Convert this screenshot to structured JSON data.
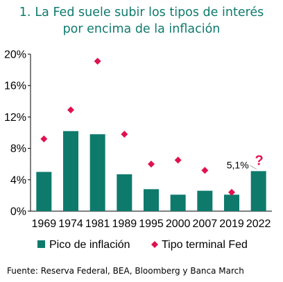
{
  "title_number": "1.",
  "title_line1": "La Fed suele subir los tipos de interés",
  "title_line2": "por encima de la inflación",
  "source": "Fuente: Reserva Federal, BEA, Bloomberg y Banca March",
  "colors": {
    "bars": "#0e7a6c",
    "markers": "#e0114f",
    "title": "#0e7a6c"
  },
  "chart_data": {
    "type": "bar",
    "categories": [
      "1969",
      "1974",
      "1981",
      "1989",
      "1995",
      "2000",
      "2007",
      "2019",
      "2022"
    ],
    "series": [
      {
        "name": "Pico de inflación",
        "kind": "bar",
        "values": [
          5.0,
          10.2,
          9.8,
          4.7,
          2.8,
          2.1,
          2.6,
          2.1,
          5.1
        ]
      },
      {
        "name": "Tipo terminal Fed",
        "kind": "marker",
        "marker": "diamond",
        "values": [
          9.2,
          12.9,
          19.1,
          9.8,
          6.0,
          6.5,
          5.2,
          2.4,
          null
        ]
      }
    ],
    "yticks": [
      "0%",
      "4%",
      "8%",
      "12%",
      "16%",
      "20%"
    ],
    "ytick_values": [
      0,
      4,
      8,
      12,
      16,
      20
    ],
    "ylim": [
      0,
      20
    ],
    "annotation": {
      "text": "5,1%",
      "category": "2022",
      "mark": "?"
    },
    "legend_position": "bottom",
    "grid": false
  }
}
